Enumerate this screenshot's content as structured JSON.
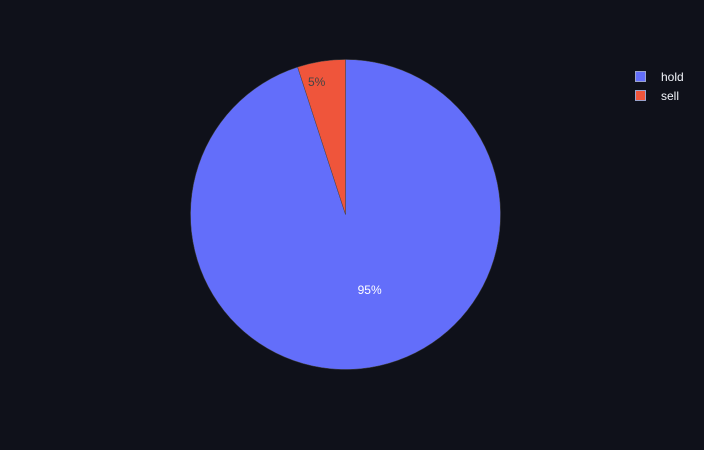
{
  "chart_data": {
    "type": "pie",
    "categories": [
      "hold",
      "sell"
    ],
    "values": [
      95,
      5
    ],
    "labels": [
      "95%",
      "5%"
    ],
    "colors": [
      "#636efa",
      "#ef553b"
    ],
    "label_colors": [
      "#ffffff",
      "#444444"
    ],
    "legend": {
      "placement": "top-right",
      "items": [
        {
          "label": "hold",
          "color": "#636efa"
        },
        {
          "label": "sell",
          "color": "#ef553b"
        }
      ]
    },
    "background": "#0f111a"
  }
}
